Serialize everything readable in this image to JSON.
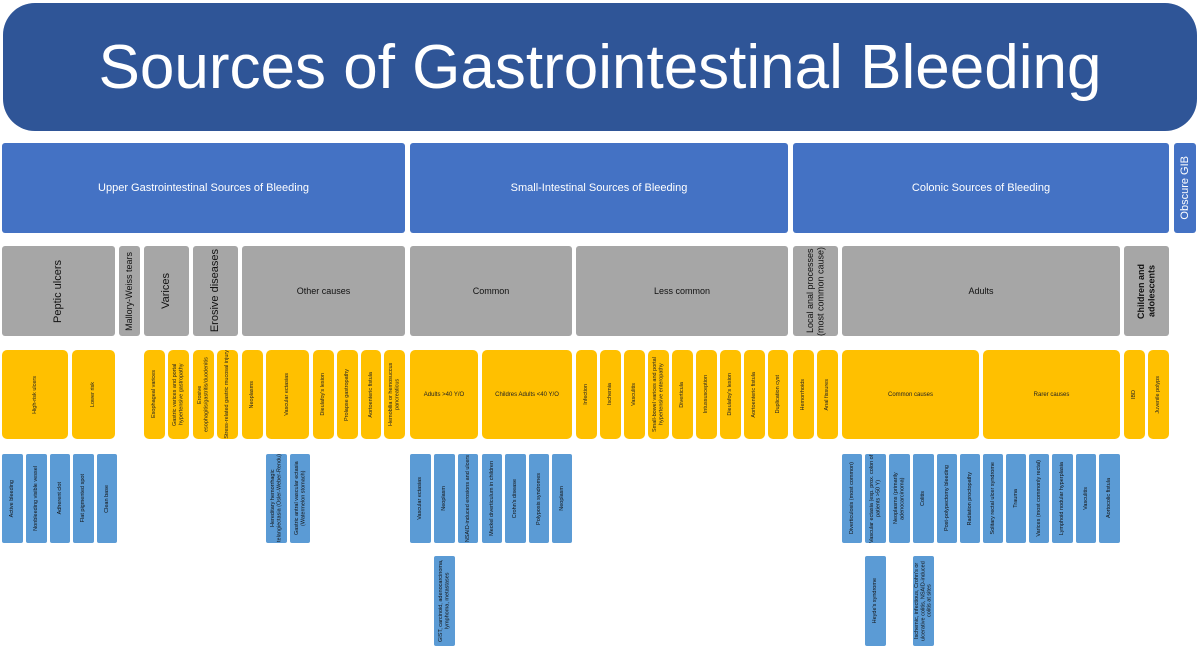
{
  "title": "Sources of Gastrointestinal Bleeding",
  "sections": {
    "upper": "Upper Gastrointestinal Sources of Bleeding",
    "small": "Small-Intestinal Sources of Bleeding",
    "colonic": "Colonic Sources of Bleeding",
    "obscure": "Obscure GIB"
  },
  "groups": {
    "peptic_ulcers": "Peptic ulcers",
    "mallory_weiss": "Mallory-Weiss tears",
    "varices": "Varices",
    "erosive": "Erosive diseases",
    "other_causes": "Other causes",
    "common": "Common",
    "less_common": "Less common",
    "local_anal": "Local anal processes (most common cause)",
    "adults": "Adults",
    "children": "Children and adolescents"
  },
  "yellow": {
    "high_risk": "High-risk ulcers",
    "lower_risk": "Lower risk",
    "esophageal_varices": "Esophageal varices",
    "gastric_varices": "Gastric varices and portal hypertensive gastropathy",
    "erosive_esoph": "Erosive esophagitis/gastritis/duodenitis",
    "stress_related": "Stress-related gastric mucosal injury",
    "neoplasms": "Neoplasms",
    "vascular_ectasias": "Vascular ectasias",
    "dieulafoy_upper": "Dieulafoy's lesion",
    "prolapse": "Prolapse gastropathy",
    "aortoenteric_upper": "Aortoenteric fistula",
    "hemobilia": "Hemobilia or hemosuccus pancreaticus",
    "adults_40": "Adults >40 Y/O",
    "children_adults_40": "Childres Adults <40 Y/O",
    "infection": "Infection",
    "ischemia": "Ischemia",
    "vasculitis": "Vasculitis",
    "small_bowel_varices": "Small-bowel varices and portal hypertensive enteropathy",
    "diverticula": "Diverticula",
    "intussusception": "Intussusception",
    "dieulafoy_small": "Dieulafoy's lesion",
    "aortoenteric_small": "Aortoenteric fistula",
    "duplication_cyst": "Duplication cyst",
    "hemorrhoids": "Hemorrhoids",
    "anal_fissures": "Anal fissures",
    "common_causes": "Common causes",
    "rarer_causes": "Rarer causes",
    "ibd": "IBD",
    "juvenile_polyps": "Juvenile polyps"
  },
  "blue": {
    "active_bleeding": "Active bleeding",
    "nonbleeding_vessel": "Nonbleeding visible vessel",
    "adherent_clot": "Adherent clot",
    "flat_pigmented": "Flat pigmented spot",
    "clean_base": "Clean base",
    "hht": "Hereditary hemorrhagic telangiectasia (Osler-Weber-Rendu)",
    "gave": "Gastric antral vascular ectasia (Watermelon stomach)",
    "vascular_ectasias_small": "Vascular ectasias",
    "neoplasm": "Neoplasm",
    "nsaid": "NSAID-induced erosions and ulcers",
    "meckel": "Meckel diverticulum in children",
    "crohns": "Crohn's disease",
    "polyposis": "Polyposis syndromes",
    "neoplasm_2": "Neoplasm",
    "gist": "GIST, carcinoid, adenocarcinoma, lymphoma, metastases",
    "diverticulosis": "Diverticulosis (most common)",
    "vascular_ectasia_colon": "Vascular ectasia (esp. prox. colon of patients >50 Y)",
    "neoplasms_adeno": "Neoplasms (primarily adenocarcinoma)",
    "colitis": "Colitis",
    "postpolypectomy": "Post-polypectomy bleeding",
    "radiation": "Radiation proctopathy",
    "solitary_rectal": "Solitary rectal ulcer syndrome",
    "trauma": "Trauma",
    "varices_rectal": "Varices (most commonly rectal)",
    "lymphoid": "Lymphoid nodular hyperplasia",
    "vasculitis_colon": "Vasculitis",
    "aortocolic": "Aortocolic fistula",
    "heyde": "Heyde's syndrome",
    "colitis_types": "Ischemic, infectious, Crohn's or ulcerative colitis, NSAID-induced colitis at sites"
  },
  "colors": {
    "title": "#2f5597",
    "section": "#4472c4",
    "group": "#a6a6a6",
    "category": "#ffc000",
    "item": "#5b9bd5"
  }
}
